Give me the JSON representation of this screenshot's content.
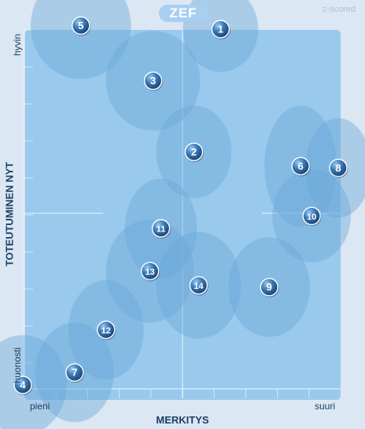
{
  "header": {
    "logo": "ZEF",
    "badge": "z-scored"
  },
  "chart_data": {
    "type": "scatter",
    "title": "",
    "xlabel": "MERKITYS",
    "ylabel": "TOTEUTUMINEN NYT",
    "x_min_label": "pieni",
    "x_max_label": "suuri",
    "y_max_label": "hyvin",
    "y_min_label": "huonosti",
    "xlim": [
      0,
      1
    ],
    "ylim": [
      0,
      1
    ],
    "grid": false,
    "colors": {
      "plot": "#99c9ed",
      "bubble": "#6aa6d6",
      "marker": "#1f5b95",
      "text": "#1d3f64"
    },
    "points": [
      {
        "label": "1",
        "x": 0.62,
        "y": 1.0,
        "rx": 0.12,
        "ry": 0.12
      },
      {
        "label": "2",
        "x": 0.535,
        "y": 0.655,
        "rx": 0.12,
        "ry": 0.13
      },
      {
        "label": "3",
        "x": 0.405,
        "y": 0.855,
        "rx": 0.15,
        "ry": 0.14
      },
      {
        "label": "4",
        "x": -0.01,
        "y": 0.0,
        "rx": 0.14,
        "ry": 0.14
      },
      {
        "label": "5",
        "x": 0.175,
        "y": 1.01,
        "rx": 0.16,
        "ry": 0.15
      },
      {
        "label": "6",
        "x": 0.875,
        "y": 0.615,
        "rx": 0.115,
        "ry": 0.17
      },
      {
        "label": "7",
        "x": 0.155,
        "y": 0.035,
        "rx": 0.125,
        "ry": 0.14
      },
      {
        "label": "8",
        "x": 0.995,
        "y": 0.61,
        "rx": 0.105,
        "ry": 0.14
      },
      {
        "label": "9",
        "x": 0.775,
        "y": 0.275,
        "rx": 0.13,
        "ry": 0.14
      },
      {
        "label": "10",
        "x": 0.91,
        "y": 0.475,
        "rx": 0.125,
        "ry": 0.13
      },
      {
        "label": "11",
        "x": 0.43,
        "y": 0.44,
        "rx": 0.115,
        "ry": 0.14
      },
      {
        "label": "12",
        "x": 0.255,
        "y": 0.155,
        "rx": 0.12,
        "ry": 0.14
      },
      {
        "label": "13",
        "x": 0.395,
        "y": 0.32,
        "rx": 0.14,
        "ry": 0.145
      },
      {
        "label": "14",
        "x": 0.55,
        "y": 0.28,
        "rx": 0.135,
        "ry": 0.15
      }
    ]
  }
}
